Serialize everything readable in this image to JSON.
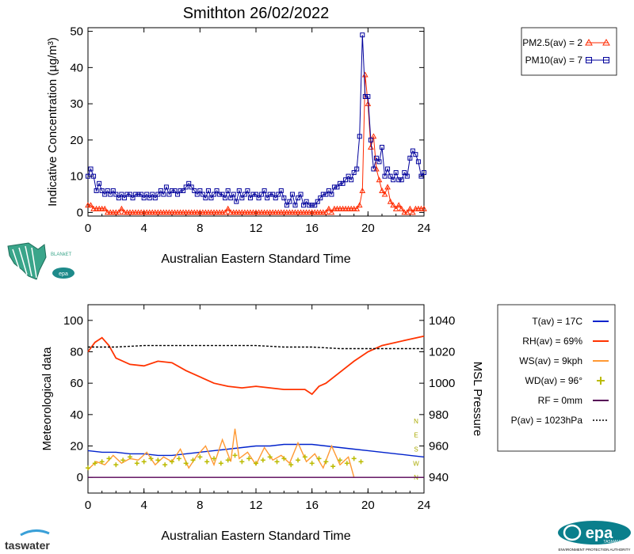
{
  "chart_data": [
    {
      "type": "line",
      "title": "Smithton 26/02/2022",
      "xlabel": "Australian Eastern Standard Time",
      "ylabel": "Indicative Concentration (µg/m³)",
      "xlim": [
        0,
        24
      ],
      "ylim": [
        -1,
        51
      ],
      "xticks": [
        "0",
        "4",
        "8",
        "12",
        "16",
        "20",
        "24"
      ],
      "yticks": [
        "0",
        "10",
        "20",
        "30",
        "40",
        "50"
      ],
      "legend_position": "top-right",
      "legend": [
        {
          "text": "PM2.5(av) = 2",
          "color": "#ff2a00",
          "marker": "triangle"
        },
        {
          "text": "PM10(av) = 7",
          "color": "#00009b",
          "marker": "square"
        }
      ],
      "series": [
        {
          "name": "PM2.5",
          "color": "#ff2a00",
          "marker": "triangle",
          "x": [
            0.0,
            0.2,
            0.4,
            0.6,
            0.8,
            1.0,
            1.2,
            1.4,
            1.6,
            1.8,
            2.0,
            2.2,
            2.4,
            2.6,
            2.8,
            3.0,
            3.2,
            3.4,
            3.6,
            3.8,
            4.0,
            4.2,
            4.4,
            4.6,
            4.8,
            5.0,
            5.2,
            5.4,
            5.6,
            5.8,
            6.0,
            6.2,
            6.4,
            6.6,
            6.8,
            7.0,
            7.2,
            7.4,
            7.6,
            7.8,
            8.0,
            8.2,
            8.4,
            8.6,
            8.8,
            9.0,
            9.2,
            9.4,
            9.6,
            9.8,
            10.0,
            10.2,
            10.4,
            10.6,
            10.8,
            11.0,
            11.2,
            11.4,
            11.6,
            11.8,
            12.0,
            12.2,
            12.4,
            12.6,
            12.8,
            13.0,
            13.2,
            13.4,
            13.6,
            13.8,
            14.0,
            14.2,
            14.4,
            14.6,
            14.8,
            15.0,
            15.2,
            15.4,
            15.6,
            15.8,
            16.0,
            16.2,
            16.4,
            16.6,
            16.8,
            17.0,
            17.2,
            17.4,
            17.6,
            17.8,
            18.0,
            18.2,
            18.4,
            18.6,
            18.8,
            19.0,
            19.2,
            19.4,
            19.6,
            19.8,
            20.0,
            20.2,
            20.4,
            20.6,
            20.8,
            21.0,
            21.2,
            21.4,
            21.6,
            21.8,
            22.0,
            22.2,
            22.4,
            22.6,
            22.8,
            23.0,
            23.2,
            23.4,
            23.6,
            23.8,
            24.0
          ],
          "values": [
            2,
            2,
            1,
            1,
            1,
            1,
            1,
            0,
            0,
            0,
            0,
            0,
            1,
            0,
            0,
            0,
            0,
            0,
            0,
            0,
            0,
            0,
            0,
            0,
            0,
            0,
            0,
            0,
            0,
            0,
            0,
            0,
            0,
            0,
            0,
            0,
            0,
            0,
            0,
            0,
            0,
            0,
            0,
            0,
            0,
            0,
            0,
            0,
            0,
            0,
            1,
            0,
            0,
            0,
            0,
            0,
            0,
            0,
            0,
            0,
            0,
            0,
            0,
            0,
            0,
            0,
            0,
            0,
            0,
            0,
            0,
            0,
            0,
            0,
            0,
            0,
            0,
            0,
            0,
            0,
            0,
            0,
            0,
            0,
            0,
            0,
            1,
            0,
            1,
            1,
            1,
            1,
            1,
            1,
            1,
            1,
            1,
            2,
            6,
            38,
            30,
            18,
            21,
            12,
            9,
            6,
            5,
            7,
            3,
            2,
            1,
            2,
            1,
            0,
            0,
            1,
            0,
            1,
            1,
            1,
            1
          ]
        },
        {
          "name": "PM10",
          "color": "#00009b",
          "marker": "square",
          "x": [
            0.0,
            0.2,
            0.4,
            0.6,
            0.8,
            1.0,
            1.2,
            1.4,
            1.6,
            1.8,
            2.0,
            2.2,
            2.4,
            2.6,
            2.8,
            3.0,
            3.2,
            3.4,
            3.6,
            3.8,
            4.0,
            4.2,
            4.4,
            4.6,
            4.8,
            5.0,
            5.2,
            5.4,
            5.6,
            5.8,
            6.0,
            6.2,
            6.4,
            6.6,
            6.8,
            7.0,
            7.2,
            7.4,
            7.6,
            7.8,
            8.0,
            8.2,
            8.4,
            8.6,
            8.8,
            9.0,
            9.2,
            9.4,
            9.6,
            9.8,
            10.0,
            10.2,
            10.4,
            10.6,
            10.8,
            11.0,
            11.2,
            11.4,
            11.6,
            11.8,
            12.0,
            12.2,
            12.4,
            12.6,
            12.8,
            13.0,
            13.2,
            13.4,
            13.6,
            13.8,
            14.0,
            14.2,
            14.4,
            14.6,
            14.8,
            15.0,
            15.2,
            15.4,
            15.6,
            15.8,
            16.0,
            16.2,
            16.4,
            16.6,
            16.8,
            17.0,
            17.2,
            17.4,
            17.6,
            17.8,
            18.0,
            18.2,
            18.4,
            18.6,
            18.8,
            19.0,
            19.2,
            19.4,
            19.6,
            19.8,
            20.0,
            20.2,
            20.4,
            20.6,
            20.8,
            21.0,
            21.2,
            21.4,
            21.6,
            21.8,
            22.0,
            22.2,
            22.4,
            22.6,
            22.8,
            23.0,
            23.2,
            23.4,
            23.6,
            23.8,
            24.0
          ],
          "values": [
            10,
            12,
            10,
            6,
            8,
            6,
            5,
            6,
            5,
            6,
            5,
            4,
            5,
            4,
            5,
            5,
            4,
            5,
            5,
            5,
            4,
            5,
            4,
            5,
            4,
            5,
            6,
            5,
            7,
            5,
            6,
            6,
            5,
            6,
            6,
            7,
            8,
            7,
            6,
            5,
            6,
            5,
            4,
            6,
            4,
            5,
            6,
            5,
            5,
            4,
            6,
            4,
            5,
            3,
            6,
            4,
            5,
            6,
            4,
            5,
            5,
            4,
            5,
            6,
            4,
            5,
            5,
            4,
            5,
            6,
            4,
            2,
            3,
            5,
            2,
            4,
            5,
            2,
            3,
            2,
            2,
            2,
            3,
            4,
            5,
            5,
            6,
            5,
            7,
            7,
            8,
            8,
            9,
            10,
            9,
            11,
            12,
            21,
            49,
            32,
            32,
            20,
            12,
            15,
            14,
            18,
            10,
            12,
            10,
            9,
            11,
            9,
            9,
            11,
            10,
            15,
            17,
            16,
            14,
            10,
            11
          ]
        }
      ]
    },
    {
      "type": "line",
      "title": "",
      "xlabel": "Australian Eastern Standard Time",
      "ylabel": "Meteorological data",
      "y2label": "MSL Pressure",
      "xlim": [
        0,
        24
      ],
      "ylim": [
        -10,
        110
      ],
      "y2lim": [
        930,
        1050
      ],
      "xticks": [
        "0",
        "4",
        "8",
        "12",
        "16",
        "20",
        "24"
      ],
      "yticks": [
        "0",
        "20",
        "40",
        "60",
        "80",
        "100"
      ],
      "y2ticks": [
        "940",
        "960",
        "980",
        "1000",
        "1020",
        "1040"
      ],
      "wd_axis_labels": [
        "N",
        "W",
        "S",
        "E",
        "N"
      ],
      "legend_position": "right",
      "legend": [
        {
          "text": "T(av) = 17C",
          "color": "#0022cc"
        },
        {
          "text": "RH(av) = 69%",
          "color": "#ff3300"
        },
        {
          "text": "WS(av) = 9kph",
          "color": "#ff9933"
        },
        {
          "text": "WD(av) = 96°",
          "color": "#bbbb00"
        },
        {
          "text": "RF = 0mm",
          "color": "#550055"
        },
        {
          "text": "P(av) = 1023hPa",
          "color": "#000000"
        }
      ],
      "series": [
        {
          "name": "T",
          "color": "#0022cc",
          "x": [
            0,
            1,
            2,
            3,
            4,
            5,
            6,
            7,
            8,
            9,
            10,
            11,
            12,
            13,
            14,
            15,
            16,
            17,
            18,
            19,
            20,
            21,
            22,
            23,
            24
          ],
          "values": [
            17,
            16,
            16,
            15,
            15,
            14,
            14,
            15,
            16,
            17,
            18,
            19,
            20,
            20,
            21,
            21,
            21,
            20,
            19,
            18,
            17,
            16,
            15,
            14,
            13
          ]
        },
        {
          "name": "RH",
          "color": "#ff3300",
          "x": [
            0,
            0.5,
            1,
            1.5,
            2,
            3,
            4,
            5,
            6,
            7,
            8,
            9,
            10,
            11,
            12,
            13,
            14,
            15,
            15.5,
            16,
            16.5,
            17,
            18,
            19,
            20,
            21,
            22,
            23,
            24
          ],
          "values": [
            80,
            86,
            89,
            84,
            76,
            72,
            71,
            74,
            73,
            68,
            64,
            60,
            58,
            57,
            58,
            57,
            56,
            56,
            56,
            53,
            58,
            60,
            67,
            74,
            80,
            84,
            86,
            88,
            90
          ]
        },
        {
          "name": "WS",
          "color": "#ff9933",
          "x": [
            0,
            0.6,
            1.2,
            1.8,
            2.4,
            3.0,
            3.6,
            4.2,
            4.8,
            5.4,
            6.0,
            6.6,
            7.2,
            7.8,
            8.4,
            9.0,
            9.6,
            10.2,
            10.5,
            10.8,
            11.4,
            12.0,
            12.6,
            13.2,
            13.8,
            14.4,
            15.0,
            15.6,
            16.2,
            16.8,
            17.4,
            18.0,
            18.6,
            19.0
          ],
          "values": [
            5,
            10,
            8,
            14,
            9,
            12,
            11,
            16,
            8,
            13,
            10,
            18,
            6,
            14,
            20,
            8,
            24,
            10,
            31,
            12,
            16,
            8,
            19,
            11,
            14,
            9,
            22,
            10,
            15,
            6,
            20,
            8,
            13,
            0
          ]
        },
        {
          "name": "WD",
          "color": "#bbbb00",
          "marker": "plus",
          "x": [
            0,
            0.5,
            1,
            1.5,
            2,
            2.5,
            3,
            3.5,
            4,
            4.5,
            5,
            5.5,
            6,
            6.5,
            7,
            7.5,
            8,
            8.5,
            9,
            9.5,
            10,
            10.5,
            11,
            11.5,
            12,
            12.5,
            13,
            13.5,
            14,
            14.5,
            15,
            15.5,
            16,
            16.5,
            17,
            17.5,
            18,
            18.5,
            19,
            19.5
          ],
          "values": [
            6,
            9,
            10,
            12,
            8,
            11,
            13,
            9,
            10,
            12,
            11,
            8,
            10,
            12,
            9,
            11,
            13,
            10,
            12,
            9,
            11,
            14,
            10,
            12,
            9,
            11,
            13,
            10,
            12,
            8,
            11,
            13,
            9,
            12,
            10,
            7,
            11,
            9,
            12,
            10
          ]
        },
        {
          "name": "RF",
          "color": "#550055",
          "x": [
            0,
            24
          ],
          "values": [
            0,
            0
          ]
        },
        {
          "name": "P",
          "color": "#000000",
          "dash": "dashed",
          "x": [
            0,
            2,
            4,
            6,
            8,
            10,
            12,
            14,
            16,
            18,
            20,
            22,
            24
          ],
          "values": [
            1023,
            1023,
            1024,
            1024,
            1024,
            1024,
            1024,
            1023,
            1023,
            1022,
            1022,
            1022,
            1022
          ]
        }
      ]
    }
  ],
  "logos": {
    "blanket_text": "BLANkET",
    "taswater_text": "taswater",
    "epa_text": "epa",
    "epa_sub": "TASMANIA",
    "epa_caption": "ENVIRONMENT PROTECTION AUTHORITY"
  }
}
